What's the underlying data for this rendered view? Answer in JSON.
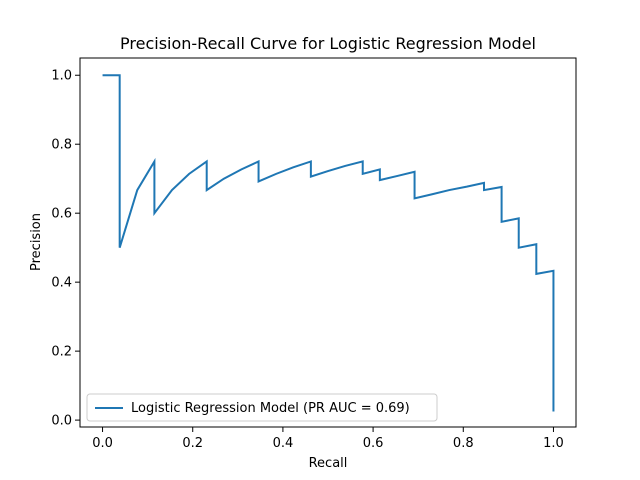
{
  "chart_data": {
    "type": "line",
    "title": "Precision-Recall Curve for Logistic Regression Model",
    "xlabel": "Recall",
    "ylabel": "Precision",
    "xlim": [
      -0.05,
      1.05
    ],
    "ylim": [
      -0.02,
      1.05
    ],
    "xticks": [
      0.0,
      0.2,
      0.4,
      0.6,
      0.8,
      1.0
    ],
    "xtick_labels": [
      "0.0",
      "0.2",
      "0.4",
      "0.6",
      "0.8",
      "1.0"
    ],
    "yticks": [
      0.0,
      0.2,
      0.4,
      0.6,
      0.8,
      1.0
    ],
    "ytick_labels": [
      "0.0",
      "0.2",
      "0.4",
      "0.6",
      "0.8",
      "1.0"
    ],
    "grid": false,
    "legend_position": "lower-left",
    "series": [
      {
        "name": "Logistic Regression Model (PR AUC = 0.69)",
        "color": "#1f77b4",
        "x": [
          0.0,
          0.038,
          0.038,
          0.077,
          0.115,
          0.115,
          0.154,
          0.192,
          0.231,
          0.231,
          0.269,
          0.308,
          0.346,
          0.346,
          0.385,
          0.423,
          0.462,
          0.462,
          0.5,
          0.538,
          0.577,
          0.577,
          0.615,
          0.615,
          0.654,
          0.692,
          0.692,
          0.731,
          0.769,
          0.808,
          0.846,
          0.846,
          0.885,
          0.885,
          0.923,
          0.923,
          0.962,
          0.962,
          1.0,
          1.0
        ],
        "y": [
          1.0,
          1.0,
          0.5,
          0.667,
          0.75,
          0.6,
          0.667,
          0.714,
          0.75,
          0.667,
          0.7,
          0.727,
          0.75,
          0.692,
          0.714,
          0.733,
          0.75,
          0.706,
          0.722,
          0.737,
          0.75,
          0.714,
          0.727,
          0.696,
          0.708,
          0.72,
          0.643,
          0.655,
          0.667,
          0.677,
          0.688,
          0.667,
          0.676,
          0.575,
          0.585,
          0.5,
          0.51,
          0.424,
          0.433,
          0.025
        ]
      }
    ]
  }
}
